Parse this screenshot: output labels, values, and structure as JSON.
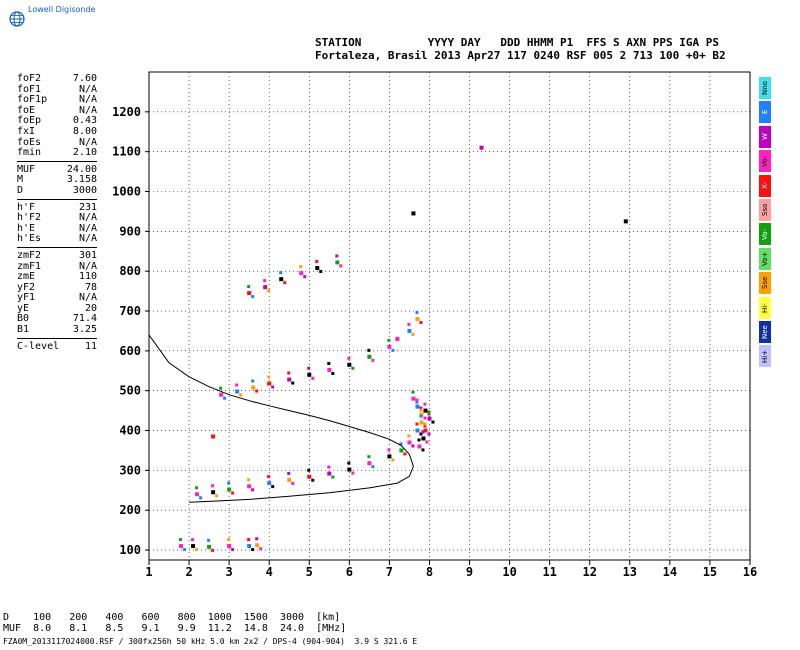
{
  "logo": {
    "text": "Lowell Digisonde"
  },
  "header": {
    "line1": "STATION          YYYY DAY   DDD HHMM P1  FFS S AXN PPS IGA PS",
    "line2": "Fortaleza, Brasil 2013 Apr27 117 0240 RSF 005 2 713 100 +0+ B2"
  },
  "params": [
    {
      "k": "foF2",
      "v": "7.60"
    },
    {
      "k": "foF1",
      "v": "N/A"
    },
    {
      "k": "foF1p",
      "v": "N/A"
    },
    {
      "k": "foE",
      "v": "N/A"
    },
    {
      "k": "foEp",
      "v": "0.43"
    },
    {
      "k": "fxI",
      "v": "8.00"
    },
    {
      "k": "foEs",
      "v": "N/A"
    },
    {
      "k": "fmin",
      "v": "2.10"
    },
    {
      "sep": true
    },
    {
      "k": "MUF",
      "v": "24.00"
    },
    {
      "k": "M",
      "v": "3.158"
    },
    {
      "k": "D",
      "v": "3000"
    },
    {
      "sep": true
    },
    {
      "k": "h'F",
      "v": "231"
    },
    {
      "k": "h'F2",
      "v": "N/A"
    },
    {
      "k": "h'E",
      "v": "N/A"
    },
    {
      "k": "h'Es",
      "v": "N/A"
    },
    {
      "sep": true
    },
    {
      "k": "zmF2",
      "v": "301"
    },
    {
      "k": "zmF1",
      "v": "N/A"
    },
    {
      "k": "zmE",
      "v": "110"
    },
    {
      "k": "yF2",
      "v": "78"
    },
    {
      "k": "yF1",
      "v": "N/A"
    },
    {
      "k": "yE",
      "v": "20"
    },
    {
      "k": "B0",
      "v": "71.4"
    },
    {
      "k": "B1",
      "v": "3.25"
    },
    {
      "sep": true
    },
    {
      "k": "C-level",
      "v": "11"
    }
  ],
  "legend": [
    {
      "label": "Nno",
      "color": "#40e0f0"
    },
    {
      "label": "E",
      "color": "#2080ff"
    },
    {
      "label": "W",
      "color": "#c000c0"
    },
    {
      "label": "Vo-",
      "color": "#ff20c0"
    },
    {
      "label": "X-",
      "color": "#ff1010"
    },
    {
      "label": "Sso",
      "color": "#ffa0a0"
    },
    {
      "label": "Vo-",
      "color": "#10a010"
    },
    {
      "label": "Vo+",
      "color": "#60e060"
    },
    {
      "label": "Sse",
      "color": "#ffa000"
    },
    {
      "label": "Hi-",
      "color": "#ffff40"
    },
    {
      "label": "Nee",
      "color": "#1030a0"
    },
    {
      "label": "Hi+",
      "color": "#c0c0ff"
    }
  ],
  "muf_table": {
    "line1": "D    100   200   400   600   800  1000  1500  3000  [km]",
    "line2": "MUF  8.0   8.1   8.5   9.1   9.9  11.2  14.8  24.0  [MHz]"
  },
  "footer": "FZA0M_2013117024000.RSF / 300fx256h 50 kHz 5.0 km 2x2 / DPS-4 (904-904)  3.9 S 321.6 E",
  "chart_data": {
    "type": "scatter",
    "xlim": [
      1,
      16
    ],
    "ylim": [
      75,
      1300
    ],
    "x_ticks": [
      1,
      2,
      3,
      4,
      5,
      6,
      7,
      8,
      9,
      10,
      11,
      12,
      13,
      14,
      15,
      16
    ],
    "y_ticks": [
      100,
      200,
      300,
      400,
      500,
      600,
      700,
      800,
      900,
      1000,
      1100,
      1200
    ],
    "grid": true,
    "profile_curve": [
      [
        1.0,
        640
      ],
      [
        1.5,
        570
      ],
      [
        2.0,
        535
      ],
      [
        2.5,
        510
      ],
      [
        3.0,
        490
      ],
      [
        3.5,
        475
      ],
      [
        4.0,
        462
      ],
      [
        4.5,
        450
      ],
      [
        5.0,
        438
      ],
      [
        5.5,
        425
      ],
      [
        6.0,
        410
      ],
      [
        6.5,
        395
      ],
      [
        7.0,
        378
      ],
      [
        7.3,
        362
      ],
      [
        7.5,
        340
      ],
      [
        7.6,
        310
      ],
      [
        7.5,
        285
      ],
      [
        7.2,
        268
      ],
      [
        6.5,
        256
      ],
      [
        5.5,
        244
      ],
      [
        4.5,
        235
      ],
      [
        3.5,
        227
      ],
      [
        2.5,
        222
      ],
      [
        2.0,
        220
      ]
    ],
    "echo_traces": [
      {
        "name": "F-trace",
        "points": [
          [
            2.2,
            240
          ],
          [
            2.6,
            245
          ],
          [
            3.0,
            252
          ],
          [
            3.5,
            260
          ],
          [
            4.0,
            268
          ],
          [
            4.5,
            276
          ],
          [
            5.0,
            284
          ],
          [
            5.5,
            292
          ],
          [
            6.0,
            302
          ],
          [
            6.5,
            318
          ],
          [
            7.0,
            335
          ],
          [
            7.3,
            350
          ],
          [
            7.5,
            370
          ],
          [
            7.7,
            400
          ],
          [
            7.8,
            440
          ]
        ]
      },
      {
        "name": "second-hop",
        "points": [
          [
            2.8,
            490
          ],
          [
            3.2,
            498
          ],
          [
            3.6,
            508
          ],
          [
            4.0,
            518
          ],
          [
            4.5,
            528
          ],
          [
            5.0,
            540
          ],
          [
            5.5,
            552
          ],
          [
            6.0,
            565
          ],
          [
            6.5,
            585
          ],
          [
            7.0,
            610
          ],
          [
            7.5,
            650
          ],
          [
            7.7,
            680
          ]
        ]
      },
      {
        "name": "third-hop",
        "points": [
          [
            3.5,
            745
          ],
          [
            3.9,
            760
          ],
          [
            4.3,
            780
          ],
          [
            4.8,
            795
          ],
          [
            5.2,
            808
          ],
          [
            5.7,
            822
          ]
        ]
      },
      {
        "name": "E-trace",
        "points": [
          [
            1.8,
            110
          ],
          [
            2.1,
            110
          ],
          [
            2.5,
            108
          ],
          [
            3.0,
            110
          ],
          [
            3.5,
            110
          ],
          [
            3.7,
            112
          ]
        ]
      },
      {
        "name": "spread",
        "points": [
          [
            7.6,
            480
          ],
          [
            7.7,
            460
          ],
          [
            7.8,
            420
          ],
          [
            7.9,
            400
          ],
          [
            8.0,
            430
          ],
          [
            7.85,
            380
          ],
          [
            7.75,
            360
          ],
          [
            7.9,
            450
          ]
        ]
      },
      {
        "name": "misc",
        "points": [
          [
            2.6,
            385
          ],
          [
            9.3,
            1110
          ],
          [
            12.9,
            925
          ],
          [
            7.2,
            630
          ],
          [
            7.6,
            945
          ]
        ]
      }
    ]
  }
}
